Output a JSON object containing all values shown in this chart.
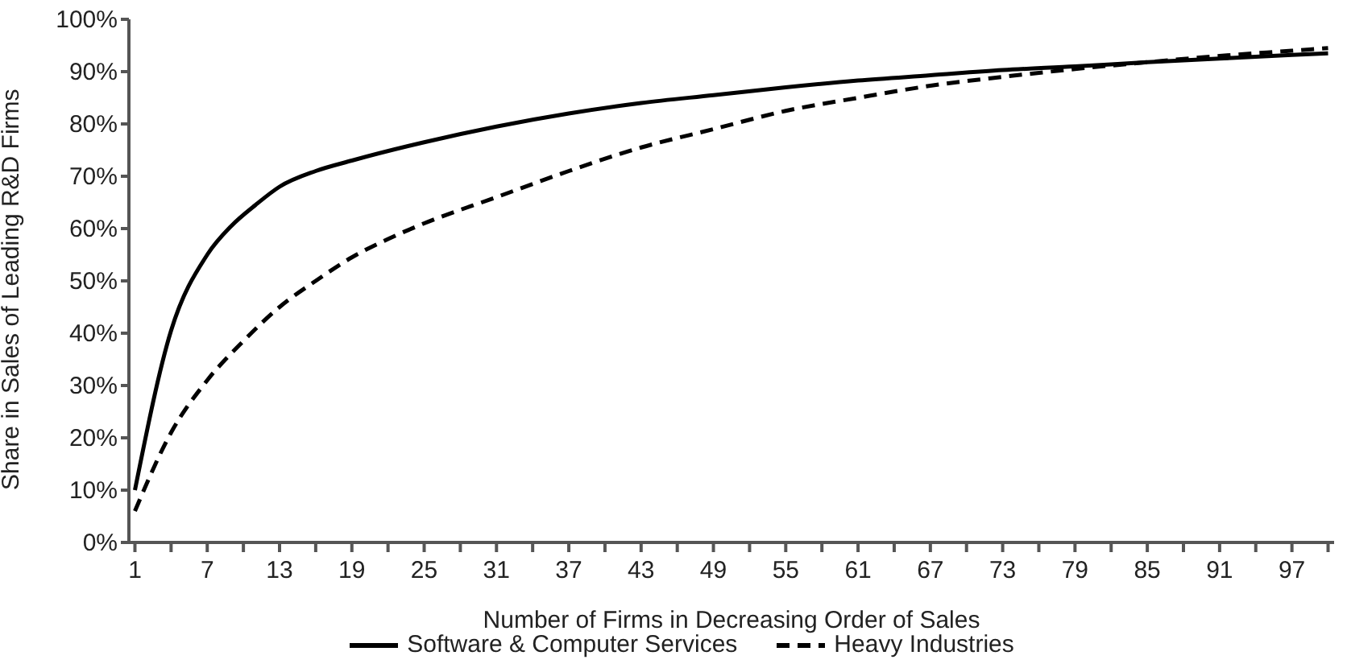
{
  "chart_data": {
    "type": "line",
    "xlabel": "Number of Firms in Decreasing Order of Sales",
    "ylabel": "Share in Sales of Leading R&D Firms",
    "xlim": [
      0.5,
      100.5
    ],
    "xticks": [
      1,
      {
        "value": 4,
        "label": null
      },
      7,
      {
        "value": 10,
        "label": null
      },
      13,
      {
        "value": 16,
        "label": null
      },
      19,
      {
        "value": 22,
        "label": null
      },
      25,
      {
        "value": 28,
        "label": null
      },
      31,
      {
        "value": 34,
        "label": null
      },
      37,
      {
        "value": 40,
        "label": null
      },
      43,
      {
        "value": 46,
        "label": null
      },
      49,
      {
        "value": 52,
        "label": null
      },
      55,
      {
        "value": 58,
        "label": null
      },
      61,
      {
        "value": 64,
        "label": null
      },
      67,
      {
        "value": 70,
        "label": null
      },
      73,
      {
        "value": 76,
        "label": null
      },
      79,
      {
        "value": 82,
        "label": null
      },
      85,
      {
        "value": 88,
        "label": null
      },
      91,
      {
        "value": 94,
        "label": null
      },
      97,
      {
        "value": 100,
        "label": null
      }
    ],
    "ylim": [
      0,
      100
    ],
    "yticks": [
      {
        "value": 0,
        "label": "0%"
      },
      {
        "value": 10,
        "label": "10%"
      },
      {
        "value": 20,
        "label": "20%"
      },
      {
        "value": 30,
        "label": "30%"
      },
      {
        "value": 40,
        "label": "40%"
      },
      {
        "value": 50,
        "label": "50%"
      },
      {
        "value": 60,
        "label": "60%"
      },
      {
        "value": 70,
        "label": "70%"
      },
      {
        "value": 80,
        "label": "80%"
      },
      {
        "value": 90,
        "label": "90%"
      },
      {
        "value": 100,
        "label": "100%"
      }
    ],
    "grid": false,
    "legend": "bottom",
    "marker": "none",
    "series": [
      {
        "name": "Software & Computer Services",
        "color": "#000000",
        "line_style": "solid",
        "x": [
          1,
          4,
          7,
          9,
          11,
          13,
          16,
          19,
          25,
          31,
          37,
          43,
          49,
          55,
          61,
          67,
          73,
          79,
          85,
          91,
          97,
          100
        ],
        "values": [
          10,
          40.5,
          55,
          60.5,
          64.5,
          68,
          71,
          73,
          76.5,
          79.5,
          82,
          84,
          85.5,
          87,
          88.3,
          89.3,
          90.3,
          91,
          91.8,
          92.5,
          93.2,
          93.5
        ]
      },
      {
        "name": "Heavy Industries",
        "color": "#000000",
        "line_style": "dashed",
        "x": [
          1,
          4,
          7,
          10,
          13,
          16,
          19,
          22,
          25,
          31,
          37,
          43,
          49,
          55,
          61,
          67,
          73,
          79,
          85,
          91,
          97,
          100
        ],
        "values": [
          6,
          21,
          31,
          38.5,
          45,
          50,
          54.5,
          58,
          61,
          66,
          71,
          75.5,
          79,
          82.5,
          85,
          87.3,
          89,
          90.5,
          91.8,
          93,
          94,
          94.5
        ]
      }
    ]
  }
}
